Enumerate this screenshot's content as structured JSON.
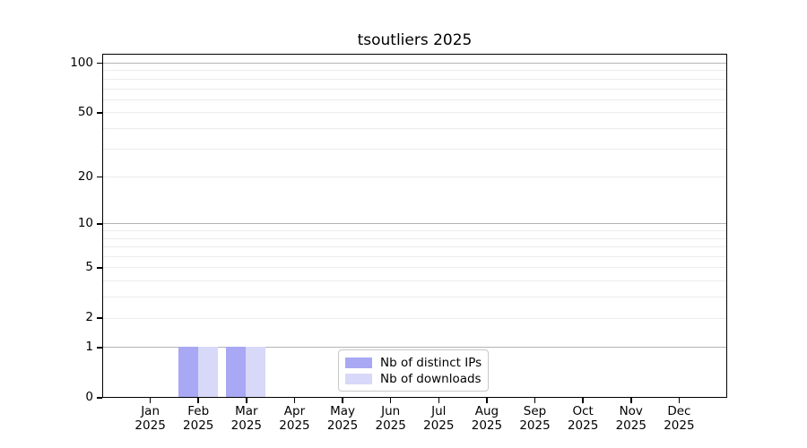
{
  "chart_data": {
    "type": "bar",
    "title": "tsoutliers 2025",
    "categories": [
      "Jan",
      "Feb",
      "Mar",
      "Apr",
      "May",
      "Jun",
      "Jul",
      "Aug",
      "Sep",
      "Oct",
      "Nov",
      "Dec"
    ],
    "category_year": "2025",
    "series": [
      {
        "name": "Nb of distinct IPs",
        "color": "#a8a8f4",
        "values": [
          0,
          1,
          1,
          0,
          0,
          0,
          0,
          0,
          0,
          0,
          0,
          0
        ]
      },
      {
        "name": "Nb of downloads",
        "color": "#d8d8f8",
        "values": [
          0,
          1,
          1,
          0,
          0,
          0,
          0,
          0,
          0,
          0,
          0,
          0
        ]
      }
    ],
    "yscale": "log1p",
    "ylim": [
      0,
      114
    ],
    "ytick_labels": [
      0,
      1,
      2,
      5,
      10,
      20,
      50,
      100
    ],
    "grid_major": [
      1,
      10,
      100
    ],
    "grid_minor": [
      2,
      3,
      4,
      5,
      6,
      7,
      8,
      9,
      20,
      30,
      40,
      50,
      60,
      70,
      80,
      90
    ],
    "grid": "on",
    "legend_position": "lower center",
    "colors": {
      "grid_major": "#b4b4b4",
      "grid_minor": "#ececec",
      "axis": "#000000",
      "legend_border": "#c8c8c8",
      "background": "#ffffff"
    }
  }
}
